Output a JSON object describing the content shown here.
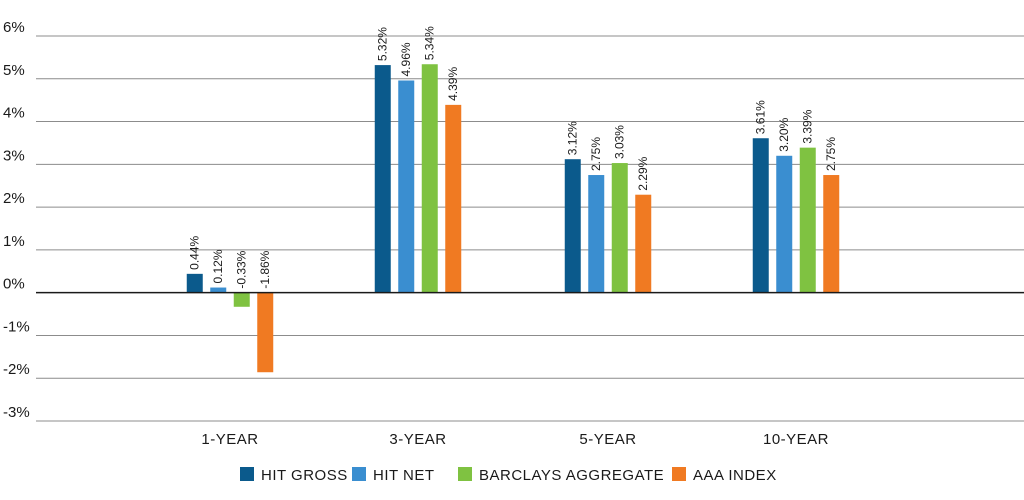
{
  "chart_data": {
    "type": "bar",
    "title": "",
    "xlabel": "",
    "ylabel": "",
    "categories": [
      "1-YEAR",
      "3-YEAR",
      "5-YEAR",
      "10-YEAR"
    ],
    "ylim": [
      -3,
      6
    ],
    "yticks": [
      6,
      5,
      4,
      3,
      2,
      1,
      0,
      -1,
      -2,
      -3
    ],
    "ytick_labels": [
      "6%",
      "5%",
      "4%",
      "3%",
      "2%",
      "1%",
      "0%",
      "-1%",
      "-2%",
      "-3%"
    ],
    "grid": true,
    "legend_position": "bottom",
    "series": [
      {
        "name": "HIT GROSS",
        "color": "#0b5a8c",
        "values": [
          0.44,
          5.32,
          3.12,
          3.61
        ],
        "labels": [
          "0.44%",
          "5.32%",
          "3.12%",
          "3.61%"
        ]
      },
      {
        "name": "HIT NET",
        "color": "#3a8ed0",
        "values": [
          0.12,
          4.96,
          2.75,
          3.2
        ],
        "labels": [
          "0.12%",
          "4.96%",
          "2.75%",
          "3.20%"
        ]
      },
      {
        "name": "BARCLAYS AGGREGATE",
        "color": "#7fc241",
        "values": [
          -0.33,
          5.34,
          3.03,
          3.39
        ],
        "labels": [
          "-0.33%",
          "5.34%",
          "3.03%",
          "3.39%"
        ]
      },
      {
        "name": "AAA INDEX",
        "color": "#f07a22",
        "values": [
          -1.86,
          4.39,
          2.29,
          2.75
        ],
        "labels": [
          "-1.86%",
          "4.39%",
          "2.29%",
          "2.75%"
        ]
      }
    ]
  }
}
